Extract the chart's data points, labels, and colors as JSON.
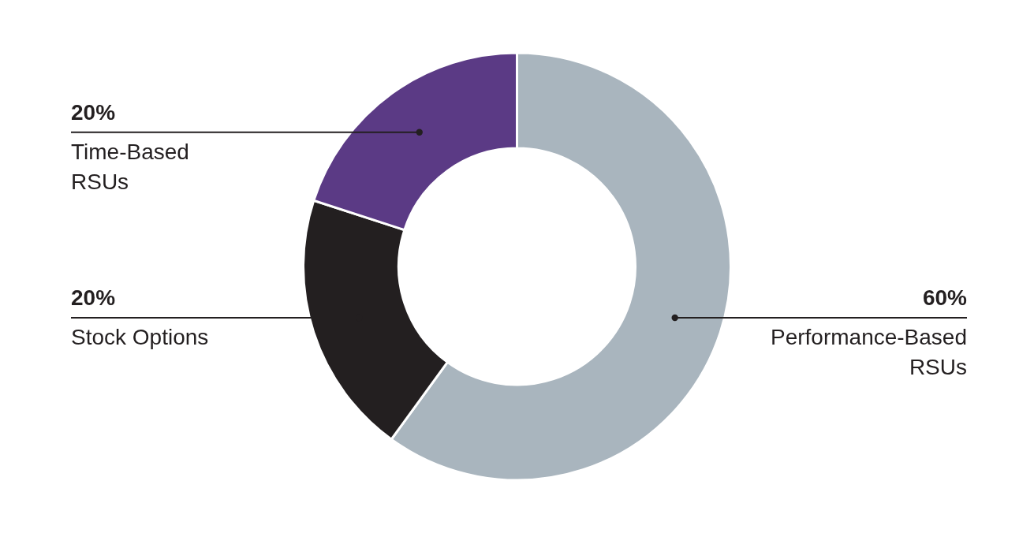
{
  "chart_data": {
    "type": "donut",
    "categories": [
      "Performance-Based RSUs",
      "Stock Options",
      "Time-Based RSUs"
    ],
    "values": [
      60,
      20,
      20
    ],
    "colors": [
      "#a9b5be",
      "#231f20",
      "#5b3a85"
    ],
    "value_labels": [
      "60%",
      "20%",
      "20%"
    ]
  }
}
